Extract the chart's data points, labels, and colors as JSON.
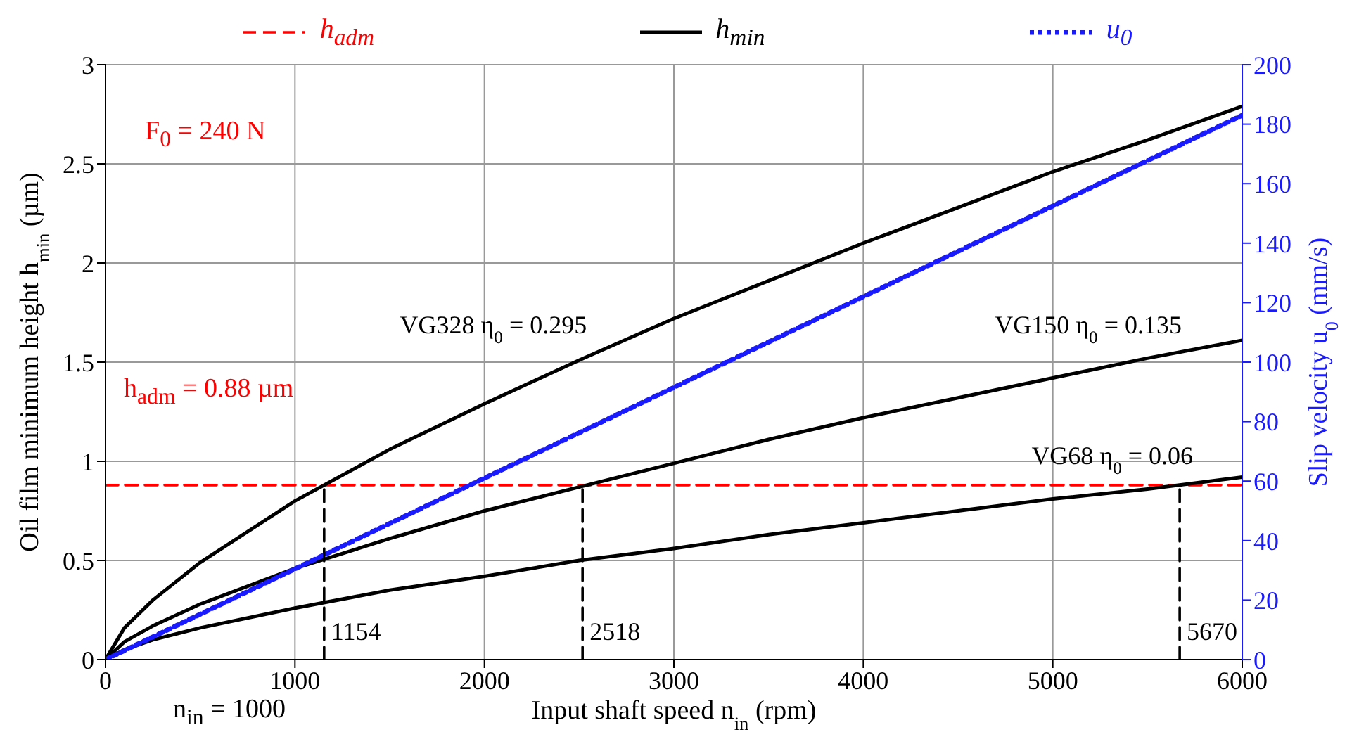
{
  "chart_data": {
    "type": "line",
    "xlabel": "Input shaft speed n$_{in}$ (rpm)",
    "ylabel": "Oil film minimum height h$_{min}$ (µm)",
    "y2label": "Slip velocity u$_{0}$ (mm/s)",
    "xlim": [
      0,
      6000
    ],
    "xticks": [
      0,
      1000,
      2000,
      3000,
      4000,
      5000,
      6000
    ],
    "ylim": [
      0,
      3
    ],
    "yticks": [
      0,
      0.5,
      1,
      1.5,
      2,
      2.5,
      3
    ],
    "y2lim": [
      0,
      200
    ],
    "y2ticks": [
      0,
      20,
      40,
      60,
      80,
      100,
      120,
      140,
      160,
      180,
      200
    ],
    "grid": true,
    "legend": "top",
    "series": [
      {
        "name": "h$_{adm}$",
        "color": "#ff0000",
        "line_style": "dashed",
        "x": [
          0,
          6000
        ],
        "values": [
          0.88,
          0.88
        ]
      },
      {
        "name": "h$_{min}$",
        "color": "#000000",
        "line_style": "solid",
        "x": [
          0,
          100,
          250,
          500,
          1000,
          1500,
          2000,
          2500,
          3000,
          3500,
          4000,
          4500,
          5000,
          5500,
          6000
        ],
        "values": [
          0,
          0.16,
          0.3,
          0.49,
          0.8,
          1.06,
          1.29,
          1.51,
          1.72,
          1.91,
          2.1,
          2.28,
          2.46,
          2.62,
          2.79
        ]
      },
      {
        "color": "#000000",
        "line_style": "solid",
        "x": [
          0,
          100,
          250,
          500,
          1000,
          1500,
          2000,
          2500,
          3000,
          3500,
          4000,
          4500,
          5000,
          5500,
          6000
        ],
        "values": [
          0,
          0.09,
          0.17,
          0.28,
          0.46,
          0.61,
          0.75,
          0.87,
          0.99,
          1.11,
          1.22,
          1.32,
          1.42,
          1.52,
          1.61
        ]
      },
      {
        "color": "#000000",
        "line_style": "solid",
        "x": [
          0,
          100,
          250,
          500,
          1000,
          1500,
          2000,
          2500,
          3000,
          3500,
          4000,
          4500,
          5000,
          5500,
          6000
        ],
        "values": [
          0,
          0.05,
          0.1,
          0.16,
          0.26,
          0.35,
          0.42,
          0.5,
          0.56,
          0.63,
          0.69,
          0.75,
          0.81,
          0.86,
          0.92
        ]
      },
      {
        "name": "u$_{0}$",
        "color": "#1a1aff",
        "line_style": "dotted",
        "axis": "y2",
        "x": [
          0,
          6000
        ],
        "values": [
          0,
          183
        ]
      },
      {
        "color": "#000000",
        "line_style": "dashed",
        "x": [
          1154,
          1154
        ],
        "values": [
          0,
          0.88
        ]
      },
      {
        "color": "#000000",
        "line_style": "dashed",
        "x": [
          2518,
          2518
        ],
        "values": [
          0,
          0.88
        ]
      },
      {
        "color": "#000000",
        "line_style": "dashed",
        "x": [
          5670,
          5670
        ],
        "values": [
          0,
          0.88
        ]
      }
    ],
    "annotations": [
      "F$_{0}$ = 240 N",
      "h$_{adm}$ = 0.88 µm",
      "n$_{in}$ = 1000",
      {
        "text": "VG328 η$_{0}$ = 0.295",
        "x": 2600,
        "y": 1.56
      },
      {
        "text": "VG150 η$_{0}$ = 0.135",
        "x": 5740,
        "y": 1.56
      },
      {
        "text": "VG68 η$_{0}$ = 0.06",
        "x": 5800,
        "y": 0.9
      },
      {
        "text": "1154",
        "x": 1154,
        "y": 0.1
      },
      {
        "text": "2518",
        "x": 2518,
        "y": 0.1
      },
      {
        "text": "5670",
        "x": 5670,
        "y": 0.1
      }
    ]
  }
}
